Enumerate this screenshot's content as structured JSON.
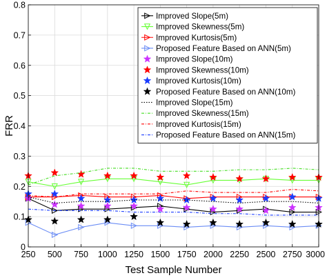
{
  "chart_data": {
    "type": "line",
    "xlabel": "Test Sample Number",
    "ylabel": "FRR",
    "xlim": [
      250,
      3000
    ],
    "ylim": [
      0,
      0.8
    ],
    "x": [
      250,
      500,
      750,
      1000,
      1250,
      1500,
      1750,
      2000,
      2250,
      2500,
      2750,
      3000
    ],
    "x_ticks": [
      "250",
      "500",
      "750",
      "1000",
      "1250",
      "1500",
      "1750",
      "2000",
      "2250",
      "2500",
      "2750",
      "3000"
    ],
    "y_ticks": [
      "0",
      "0.1",
      "0.2",
      "0.3",
      "0.4",
      "0.5",
      "0.6",
      "0.7",
      "0.8"
    ],
    "grid": true,
    "legend_position": "top-right",
    "series": [
      {
        "name": "Improved Slope(5m)",
        "color": "#000000",
        "dash": "solid",
        "marker": "tri-right",
        "values": [
          0.16,
          0.12,
          0.125,
          0.125,
          0.13,
          0.135,
          0.125,
          0.115,
          0.12,
          0.125,
          0.115,
          0.115
        ]
      },
      {
        "name": "Improved Skewness(5m)",
        "color": "#66ff33",
        "dash": "solid",
        "marker": "tri-down",
        "values": [
          0.215,
          0.2,
          0.215,
          0.225,
          0.225,
          0.215,
          0.205,
          0.22,
          0.22,
          0.225,
          0.22,
          0.22
        ]
      },
      {
        "name": "Improved Kurtosis(5m)",
        "color": "#ff0000",
        "dash": "solid",
        "marker": "tri-right",
        "values": [
          0.165,
          0.165,
          0.17,
          0.165,
          0.165,
          0.17,
          0.16,
          0.165,
          0.165,
          0.165,
          0.165,
          0.165
        ]
      },
      {
        "name": "Proposed Feature Based on ANN(5m)",
        "color": "#6a8cf5",
        "dash": "solid",
        "marker": "tri-right",
        "values": [
          0.08,
          0.04,
          0.065,
          0.08,
          0.07,
          0.07,
          0.065,
          0.07,
          0.065,
          0.07,
          0.065,
          0.07
        ]
      },
      {
        "name": "Improved Slope(10m)",
        "color": "#cc33ff",
        "dash": "none",
        "marker": "star",
        "values": [
          0.16,
          0.14,
          0.135,
          0.135,
          0.135,
          0.125,
          0.13,
          0.125,
          0.125,
          0.12,
          0.13,
          0.13
        ]
      },
      {
        "name": "Improved Skewness(10m)",
        "color": "#ff0000",
        "dash": "none",
        "marker": "star",
        "values": [
          0.235,
          0.245,
          0.24,
          0.235,
          0.235,
          0.23,
          0.235,
          0.23,
          0.225,
          0.225,
          0.23,
          0.23
        ]
      },
      {
        "name": "Improved Kurtosis(10m)",
        "color": "#1a3cff",
        "dash": "none",
        "marker": "star",
        "values": [
          0.175,
          0.175,
          0.16,
          0.155,
          0.155,
          0.16,
          0.155,
          0.16,
          0.155,
          0.16,
          0.165,
          0.16
        ]
      },
      {
        "name": "Proposed Feature Based on ANN(10m)",
        "color": "#000000",
        "dash": "none",
        "marker": "star",
        "values": [
          0.09,
          0.085,
          0.09,
          0.09,
          0.1,
          0.08,
          0.075,
          0.08,
          0.075,
          0.08,
          0.075,
          0.075
        ]
      },
      {
        "name": "Improved Slope(15m)",
        "color": "#000000",
        "dash": "dotted",
        "marker": "none",
        "values": [
          0.165,
          0.145,
          0.15,
          0.15,
          0.155,
          0.155,
          0.155,
          0.15,
          0.145,
          0.15,
          0.15,
          0.145
        ]
      },
      {
        "name": "Improved Skewness(15m)",
        "color": "#44dd22",
        "dash": "dashdot",
        "marker": "none",
        "values": [
          0.205,
          0.235,
          0.245,
          0.26,
          0.26,
          0.25,
          0.25,
          0.25,
          0.255,
          0.255,
          0.26,
          0.255
        ]
      },
      {
        "name": "Improved Kurtosis(15m)",
        "color": "#ff0000",
        "dash": "dashdot",
        "marker": "none",
        "values": [
          0.17,
          0.165,
          0.175,
          0.175,
          0.175,
          0.175,
          0.185,
          0.18,
          0.18,
          0.18,
          0.19,
          0.185
        ]
      },
      {
        "name": "Proposed Feature Based on ANN(15m)",
        "color": "#1a3cff",
        "dash": "dashdot",
        "marker": "none",
        "values": [
          0.125,
          0.12,
          0.12,
          0.12,
          0.115,
          0.115,
          0.115,
          0.11,
          0.11,
          0.105,
          0.105,
          0.105
        ]
      }
    ]
  }
}
